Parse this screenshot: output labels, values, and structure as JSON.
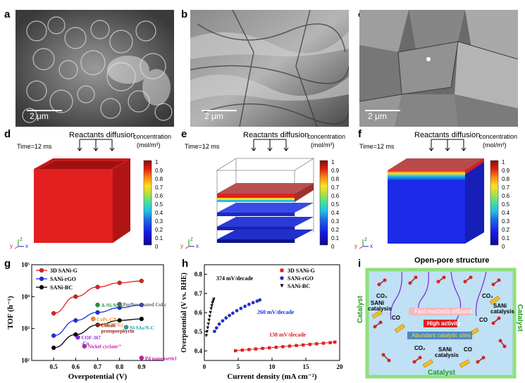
{
  "panels": {
    "a": {
      "label": "a",
      "scale": "2 μm"
    },
    "b": {
      "label": "b",
      "scale": "2 μm"
    },
    "c": {
      "label": "c",
      "scale": "2 μm"
    },
    "d": {
      "label": "d"
    },
    "e": {
      "label": "e"
    },
    "f": {
      "label": "f"
    },
    "g": {
      "label": "g"
    },
    "h": {
      "label": "h"
    },
    "i": {
      "label": "i"
    }
  },
  "simulation": {
    "time": "Time=12 ms",
    "title": "Reactants diffusion",
    "cb_title1": "concentration",
    "cb_title2": "(mol/m³)",
    "cb_ticks": [
      "1",
      "0.9",
      "0.8",
      "0.7",
      "0.6",
      "0.5",
      "0.4",
      "0.3",
      "0.2",
      "0.1",
      "0"
    ],
    "axes": {
      "y": "y",
      "z": "z",
      "x": "x"
    }
  },
  "colors": {
    "red": "#e02020",
    "blue": "#1a2ee6",
    "black": "#000000",
    "orange": "#ff8c1a",
    "green": "#1f9a3a",
    "gray": "#666666",
    "darkred": "#8b1a1a",
    "cyan": "#1aa5a5",
    "purple": "#8a2be2",
    "magenta": "#c21fa8",
    "paleblue": "#bfe0f5",
    "panelgreen": "#8fe07a"
  },
  "chart_data": [
    {
      "type": "line",
      "panel": "g",
      "xlabel": "Overpotential (V)",
      "ylabel": "TOF (h⁻¹)",
      "yscale": "log",
      "xlim": [
        0.4,
        1.0
      ],
      "ylim": [
        100,
        100000
      ],
      "xticks": [
        "0.5",
        "0.6",
        "0.7",
        "0.8",
        "0.9"
      ],
      "yticks": [
        "10²",
        "10³",
        "10⁴",
        "10⁵"
      ],
      "series": [
        {
          "name": "3D SANi-G",
          "color": "#e02020",
          "x": [
            0.5,
            0.6,
            0.7,
            0.8,
            0.9
          ],
          "y": [
            3000,
            10000,
            20000,
            27000,
            31000
          ]
        },
        {
          "name": "SANi-rGO",
          "color": "#1a2ee6",
          "x": [
            0.5,
            0.6,
            0.7,
            0.8,
            0.9
          ],
          "y": [
            600,
            1800,
            3200,
            4500,
            5500
          ]
        },
        {
          "name": "SANi-BC",
          "color": "#000000",
          "x": [
            0.5,
            0.6,
            0.7,
            0.8,
            0.9
          ],
          "y": [
            250,
            650,
            1300,
            1800,
            2000
          ]
        }
      ],
      "references": [
        {
          "label": "A-Ni-NSG",
          "color": "#1f9a3a",
          "x": 0.7,
          "y": 5500
        },
        {
          "label": "CoPc-CN",
          "label2": "/CNT(3.5%)",
          "color": "#ff8c1a",
          "x": 0.68,
          "y": 2000
        },
        {
          "label": "Perfluorinated CoPc",
          "color": "#666666",
          "x": 0.8,
          "y": 5800
        },
        {
          "label": "Cobalt",
          "label2": "protoporphyrin",
          "color": "#8b1a1a",
          "x": 0.7,
          "y": 1300
        },
        {
          "label": "Ni SAs/N-C",
          "color": "#1aa5a5",
          "x": 0.83,
          "y": 1100
        },
        {
          "label": "COF-367",
          "label2": "-Co",
          "color": "#8a2be2",
          "x": 0.61,
          "y": 530
        },
        {
          "label": "Nickel cyclam²⁺",
          "color": "#c21fa8",
          "x": 0.64,
          "y": 280
        },
        {
          "label": "Pd nanoparticles",
          "color": "#c21fa8",
          "x": 0.9,
          "y": 120
        }
      ]
    },
    {
      "type": "scatter",
      "panel": "h",
      "xlabel": "Current density (mA cm⁻²)",
      "ylabel": "Overpotential (V vs. RHE)",
      "xlim": [
        0,
        20
      ],
      "ylim": [
        0.35,
        0.85
      ],
      "xticks": [
        "0",
        "5",
        "10",
        "15",
        "20"
      ],
      "yticks": [
        "0.4",
        "0.5",
        "0.6",
        "0.7",
        "0.8"
      ],
      "series": [
        {
          "name": "3D SANi-G",
          "color": "#e02020",
          "marker": "square",
          "x": [
            4.6,
            5.6,
            6.6,
            7.6,
            8.6,
            9.6,
            10.6,
            11.6,
            12.6,
            13.6,
            14.6,
            15.6,
            16.6,
            17.6,
            18.6,
            19.3
          ],
          "y": [
            0.401,
            0.404,
            0.407,
            0.41,
            0.413,
            0.416,
            0.419,
            0.422,
            0.425,
            0.428,
            0.431,
            0.434,
            0.437,
            0.44,
            0.443,
            0.446
          ]
        },
        {
          "name": "SANi-rGO",
          "color": "#1a2ee6",
          "marker": "circle",
          "x": [
            1.5,
            1.8,
            2.2,
            2.7,
            3.2,
            3.7,
            4.2,
            4.8,
            5.4,
            6.0,
            6.6,
            7.2,
            7.8,
            8.2
          ],
          "y": [
            0.502,
            0.52,
            0.54,
            0.557,
            0.572,
            0.585,
            0.597,
            0.61,
            0.622,
            0.633,
            0.643,
            0.652,
            0.66,
            0.666
          ]
        },
        {
          "name": "SANi-BC",
          "color": "#000000",
          "marker": "triangle",
          "x": [
            0.3,
            0.4,
            0.5,
            0.6,
            0.7,
            0.8,
            0.9,
            1.0,
            1.1,
            1.2,
            1.3,
            1.4
          ],
          "y": [
            0.48,
            0.5,
            0.52,
            0.54,
            0.56,
            0.58,
            0.6,
            0.62,
            0.635,
            0.65,
            0.66,
            0.67
          ]
        }
      ],
      "annotations": [
        {
          "text": "374 mV/decade",
          "color": "#000000"
        },
        {
          "text": "260 mV/decade",
          "color": "#1a2ee6"
        },
        {
          "text": "138 mV/decade",
          "color": "#e02020"
        }
      ]
    }
  ],
  "schematic": {
    "title": "Open-pore structure",
    "catalyst": "Catalyst",
    "co2": "CO₂",
    "co": "CO",
    "sani": "SANi",
    "catalysis": "catalysis",
    "fast": "Fast reactants diffusion",
    "high": "High activity",
    "abundant": "Abundant catalytic sites"
  }
}
